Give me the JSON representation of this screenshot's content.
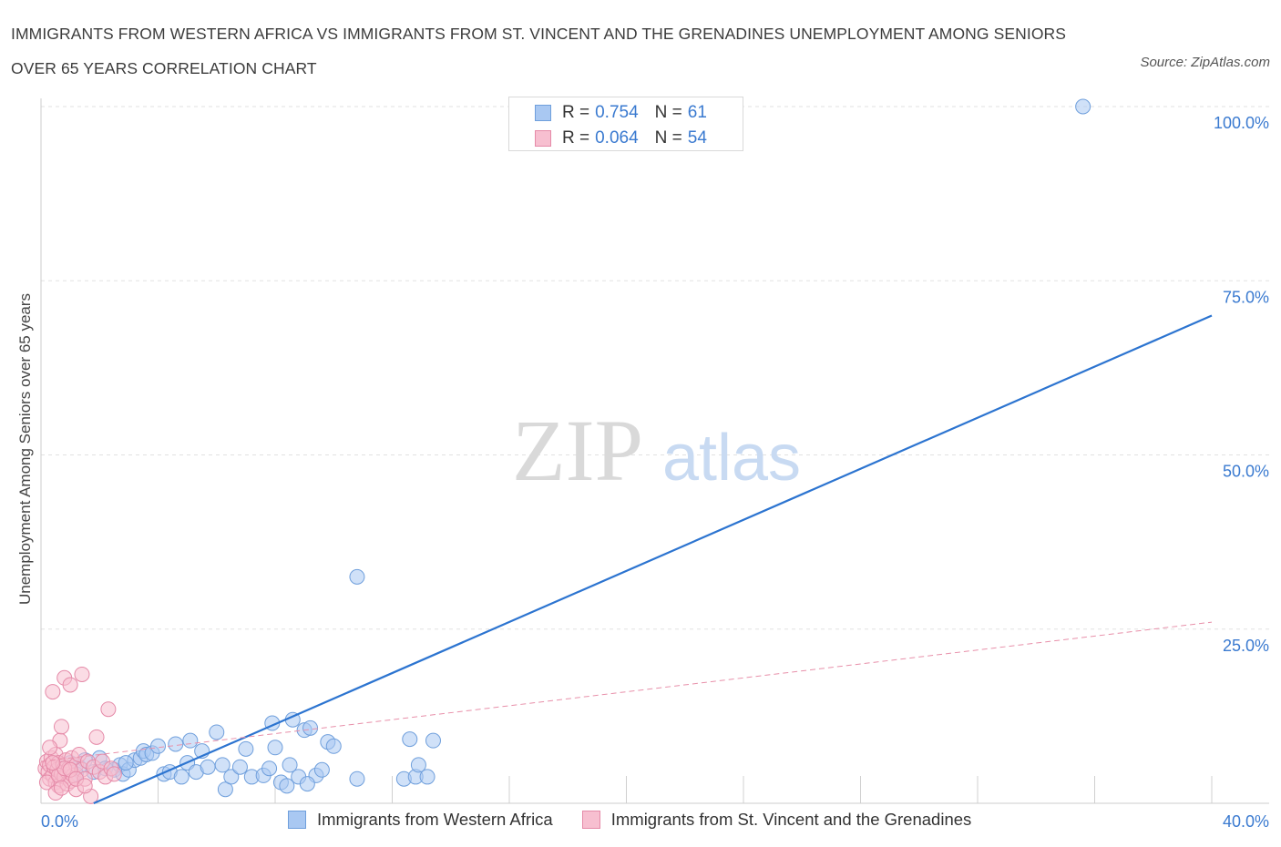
{
  "title": "IMMIGRANTS FROM WESTERN AFRICA VS IMMIGRANTS FROM ST. VINCENT AND THE GRENADINES UNEMPLOYMENT AMONG SENIORS OVER 65 YEARS CORRELATION CHART",
  "source": "Source: ZipAtlas.com",
  "watermark": {
    "zip": "ZIP",
    "atlas": "atlas"
  },
  "legend": {
    "rows": [
      {
        "r_label": "R =",
        "r_value": "0.754",
        "n_label": "N =",
        "n_value": "61",
        "color": "#a9c8f2",
        "border": "#6f9fdc"
      },
      {
        "r_label": "R =",
        "r_value": "0.064",
        "n_label": "N =",
        "n_value": "54",
        "color": "#f7bfd0",
        "border": "#e58aa8"
      }
    ]
  },
  "bottom_legend": [
    {
      "label": "Immigrants from Western Africa",
      "color": "#a9c8f2",
      "border": "#6f9fdc"
    },
    {
      "label": "Immigrants from St. Vincent and the Grenadines",
      "color": "#f7bfd0",
      "border": "#e58aa8"
    }
  ],
  "chart_data": {
    "type": "scatter",
    "title": "IMMIGRANTS FROM WESTERN AFRICA VS IMMIGRANTS FROM ST. VINCENT AND THE GRENADINES UNEMPLOYMENT AMONG SENIORS OVER 65 YEARS CORRELATION CHART",
    "xlabel": "",
    "ylabel": "Unemployment Among Seniors over 65 years",
    "xlim": [
      0,
      40
    ],
    "ylim": [
      0,
      100
    ],
    "x_tick_labels": [
      {
        "value": 0,
        "label": "0.0%"
      },
      {
        "value": 40,
        "label": "40.0%"
      }
    ],
    "y_tick_labels": [
      {
        "value": 25,
        "label": "25.0%"
      },
      {
        "value": 50,
        "label": "50.0%"
      },
      {
        "value": 75,
        "label": "75.0%"
      },
      {
        "value": 100,
        "label": "100.0%"
      }
    ],
    "grid": true,
    "legend_position": "top-center",
    "series": [
      {
        "name": "Immigrants from Western Africa",
        "color": "#a9c8f2",
        "edge_color": "#6f9fdc",
        "trend": {
          "x": [
            1.8,
            40
          ],
          "y": [
            0,
            70
          ],
          "color": "#2c74d0",
          "style": "solid"
        },
        "points": [
          [
            0.5,
            5.5
          ],
          [
            0.8,
            5.0
          ],
          [
            1.0,
            5.8
          ],
          [
            1.3,
            5.2
          ],
          [
            1.5,
            6.2
          ],
          [
            1.8,
            4.5
          ],
          [
            2.0,
            6.5
          ],
          [
            2.2,
            5.0
          ],
          [
            2.5,
            4.8
          ],
          [
            2.7,
            5.5
          ],
          [
            2.8,
            4.2
          ],
          [
            3.0,
            4.8
          ],
          [
            3.2,
            6.2
          ],
          [
            3.4,
            6.5
          ],
          [
            3.5,
            7.5
          ],
          [
            3.6,
            7.0
          ],
          [
            3.8,
            7.2
          ],
          [
            4.0,
            8.2
          ],
          [
            4.2,
            4.2
          ],
          [
            4.4,
            4.5
          ],
          [
            4.6,
            8.5
          ],
          [
            4.8,
            3.8
          ],
          [
            5.0,
            5.8
          ],
          [
            5.1,
            9.0
          ],
          [
            5.3,
            4.5
          ],
          [
            5.5,
            7.5
          ],
          [
            5.7,
            5.2
          ],
          [
            6.0,
            10.2
          ],
          [
            6.2,
            5.5
          ],
          [
            6.3,
            2.0
          ],
          [
            6.5,
            3.8
          ],
          [
            6.8,
            5.2
          ],
          [
            7.0,
            7.8
          ],
          [
            7.2,
            3.8
          ],
          [
            7.6,
            4.0
          ],
          [
            7.8,
            5.0
          ],
          [
            7.9,
            11.5
          ],
          [
            8.0,
            8.0
          ],
          [
            8.2,
            3.0
          ],
          [
            8.4,
            2.5
          ],
          [
            8.5,
            5.5
          ],
          [
            8.6,
            12.0
          ],
          [
            8.8,
            3.8
          ],
          [
            9.0,
            10.5
          ],
          [
            9.2,
            10.8
          ],
          [
            9.4,
            4.0
          ],
          [
            9.6,
            4.8
          ],
          [
            9.8,
            8.8
          ],
          [
            10.0,
            8.2
          ],
          [
            10.8,
            32.5
          ],
          [
            10.8,
            3.5
          ],
          [
            12.4,
            3.5
          ],
          [
            12.6,
            9.2
          ],
          [
            12.8,
            3.8
          ],
          [
            12.9,
            5.5
          ],
          [
            13.2,
            3.8
          ],
          [
            13.4,
            9.0
          ],
          [
            35.6,
            100.0
          ],
          [
            1.2,
            4.2
          ],
          [
            2.9,
            5.8
          ],
          [
            9.1,
            2.8
          ]
        ]
      },
      {
        "name": "Immigrants from St. Vincent and the Grenadines",
        "color": "#f7bfd0",
        "edge_color": "#e58aa8",
        "trend": {
          "x": [
            0,
            40
          ],
          "y": [
            6.0,
            26.0
          ],
          "color": "#e890aa",
          "style": "dashed"
        },
        "points": [
          [
            0.15,
            5.0
          ],
          [
            0.2,
            6.0
          ],
          [
            0.25,
            4.5
          ],
          [
            0.3,
            5.5
          ],
          [
            0.3,
            3.5
          ],
          [
            0.35,
            6.5
          ],
          [
            0.4,
            4.0
          ],
          [
            0.4,
            16.0
          ],
          [
            0.45,
            5.2
          ],
          [
            0.5,
            3.0
          ],
          [
            0.5,
            7.0
          ],
          [
            0.55,
            4.8
          ],
          [
            0.6,
            5.8
          ],
          [
            0.6,
            2.5
          ],
          [
            0.65,
            9.0
          ],
          [
            0.7,
            4.2
          ],
          [
            0.7,
            11.0
          ],
          [
            0.75,
            5.5
          ],
          [
            0.8,
            3.8
          ],
          [
            0.8,
            18.0
          ],
          [
            0.85,
            6.2
          ],
          [
            0.9,
            4.5
          ],
          [
            0.9,
            2.8
          ],
          [
            0.95,
            5.0
          ],
          [
            1.0,
            3.2
          ],
          [
            1.0,
            17.0
          ],
          [
            1.05,
            6.5
          ],
          [
            1.1,
            4.0
          ],
          [
            1.2,
            5.5
          ],
          [
            1.2,
            2.0
          ],
          [
            1.3,
            7.0
          ],
          [
            1.4,
            4.8
          ],
          [
            1.5,
            3.5
          ],
          [
            1.6,
            6.0
          ],
          [
            1.7,
            1.0
          ],
          [
            1.8,
            5.2
          ],
          [
            1.9,
            9.5
          ],
          [
            2.0,
            4.5
          ],
          [
            2.1,
            6.0
          ],
          [
            2.2,
            3.8
          ],
          [
            2.3,
            13.5
          ],
          [
            2.4,
            5.0
          ],
          [
            1.4,
            18.5
          ],
          [
            0.2,
            3.0
          ],
          [
            0.3,
            8.0
          ],
          [
            0.5,
            1.5
          ],
          [
            0.6,
            4.0
          ],
          [
            0.8,
            5.0
          ],
          [
            1.0,
            4.8
          ],
          [
            1.2,
            3.5
          ],
          [
            0.4,
            5.8
          ],
          [
            0.7,
            2.2
          ],
          [
            2.5,
            4.2
          ],
          [
            1.5,
            2.5
          ]
        ]
      }
    ]
  }
}
